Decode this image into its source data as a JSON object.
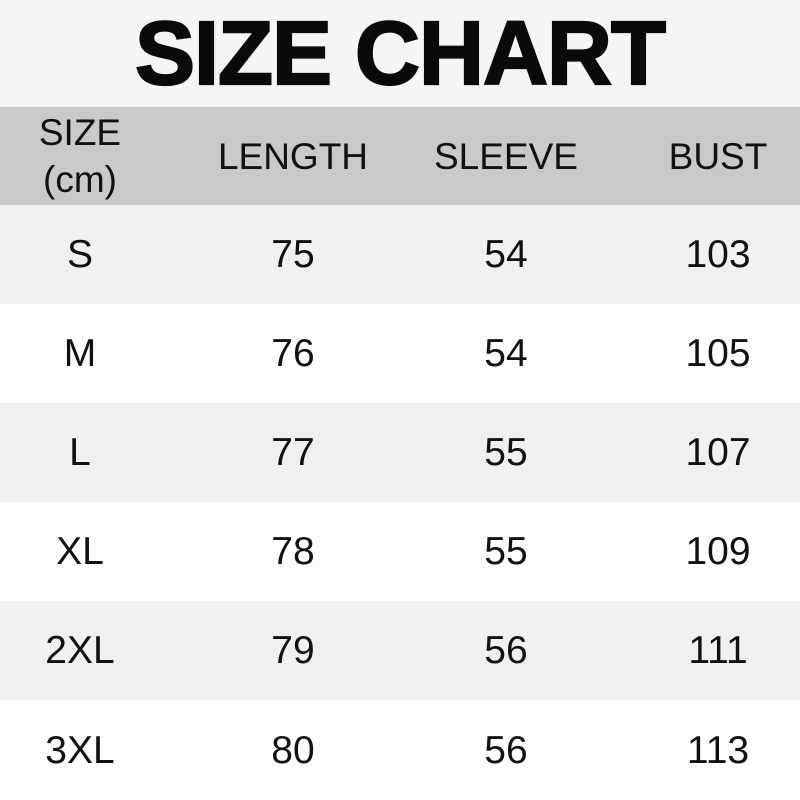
{
  "page_title": "SIZE CHART",
  "header": {
    "col1_line1": "SIZE",
    "col1_line2": "(cm)"
  },
  "chart_data": {
    "type": "table",
    "title": "SIZE CHART",
    "unit": "cm",
    "columns": [
      "SIZE (cm)",
      "LENGTH",
      "SLEEVE",
      "BUST"
    ],
    "rows": [
      [
        "S",
        75,
        54,
        103
      ],
      [
        "M",
        76,
        54,
        105
      ],
      [
        "L",
        77,
        55,
        107
      ],
      [
        "XL",
        78,
        55,
        109
      ],
      [
        "2XL",
        79,
        56,
        111
      ],
      [
        "3XL",
        80,
        56,
        113
      ]
    ]
  },
  "colors": {
    "title-bg": "#f5f5f8",
    "header-bg": "#c9c9c9",
    "row-white": "#fdfdfe",
    "row-gray": "#f0f0f1",
    "text": "#111111"
  }
}
